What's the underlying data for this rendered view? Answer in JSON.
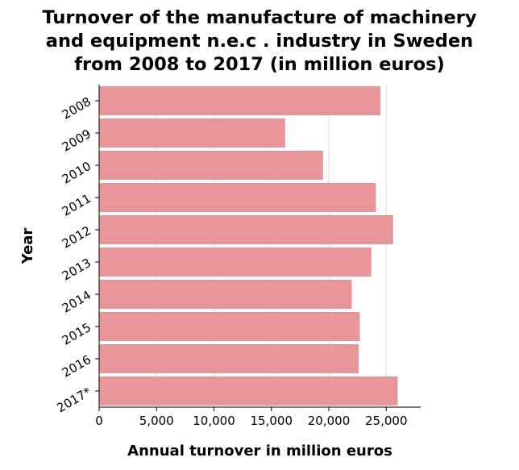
{
  "chart_data": {
    "type": "bar",
    "orientation": "horizontal",
    "title": "Turnover of the manufacture of machinery and equipment n.e.c . industry in Sweden from 2008 to 2017 (in million euros)",
    "title_lines": [
      "Turnover of the manufacture of machinery",
      "and equipment n.e.c . industry in Sweden",
      "from 2008 to 2017 (in million euros)"
    ],
    "xlabel": "Annual turnover in million euros",
    "ylabel": "Year",
    "categories": [
      "2008",
      "2009",
      "2010",
      "2011",
      "2012",
      "2013",
      "2014",
      "2015",
      "2016",
      "2017*"
    ],
    "values": [
      24500,
      16200,
      19500,
      24100,
      25600,
      23700,
      22000,
      22700,
      22600,
      26000
    ],
    "xlim": [
      0,
      28000
    ],
    "x_ticks": [
      0,
      5000,
      10000,
      15000,
      20000,
      25000
    ],
    "x_tick_labels": [
      "0",
      "5,000",
      "10,000",
      "15,000",
      "20,000",
      "25,000"
    ],
    "grid": true,
    "bar_color": "#e8969a",
    "background": "#ffffff",
    "grid_color": "#dddddd"
  }
}
